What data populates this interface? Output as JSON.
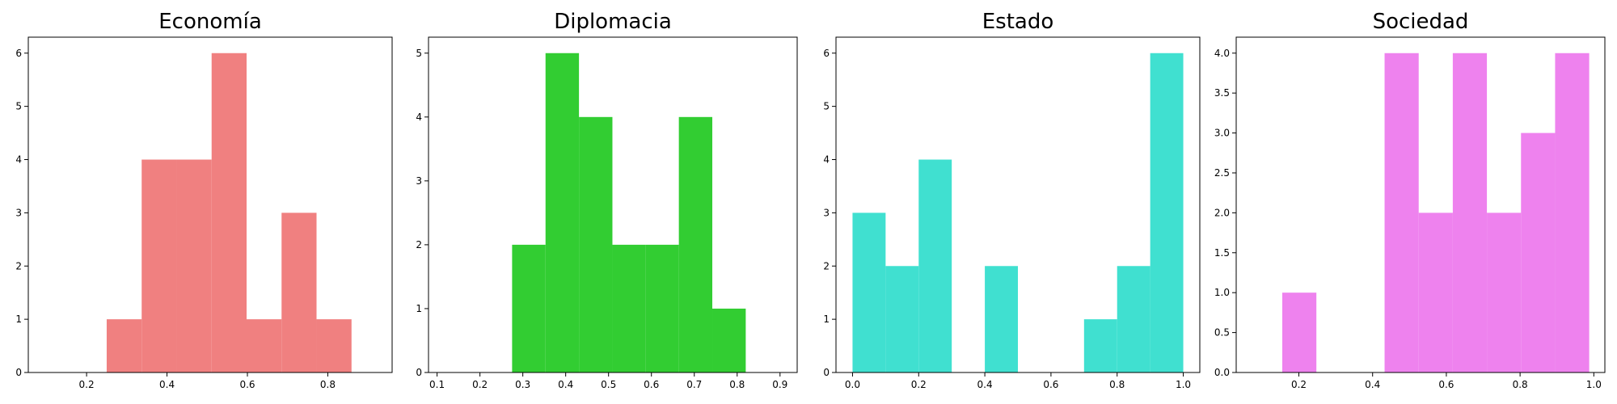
{
  "chart_data": [
    {
      "type": "bar",
      "title": "Economía",
      "color": "#F08080",
      "xlim": [
        0.055,
        0.96
      ],
      "ylim": [
        0,
        6.3
      ],
      "xticks": [
        0.2,
        0.4,
        0.6,
        0.8
      ],
      "xtick_labels": [
        "0.2",
        "0.4",
        "0.6",
        "0.8"
      ],
      "yticks": [
        0,
        1,
        2,
        3,
        4,
        5,
        6
      ],
      "ytick_labels": [
        "0",
        "1",
        "2",
        "3",
        "4",
        "5",
        "6"
      ],
      "bins": [
        0.25,
        0.337,
        0.424,
        0.511,
        0.598,
        0.685,
        0.772,
        0.859
      ],
      "counts": [
        1,
        4,
        4,
        6,
        1,
        3,
        1
      ]
    },
    {
      "type": "bar",
      "title": "Diplomacia",
      "color": "#32CD32",
      "xlim": [
        0.08,
        0.94
      ],
      "ylim": [
        0,
        5.25
      ],
      "xticks": [
        0.1,
        0.2,
        0.3,
        0.4,
        0.5,
        0.6,
        0.7,
        0.8,
        0.9
      ],
      "xtick_labels": [
        "0.1",
        "0.2",
        "0.3",
        "0.4",
        "0.5",
        "0.6",
        "0.7",
        "0.8",
        "0.9"
      ],
      "yticks": [
        0,
        1,
        2,
        3,
        4,
        5
      ],
      "ytick_labels": [
        "0",
        "1",
        "2",
        "3",
        "4",
        "5"
      ],
      "bins": [
        0.275,
        0.353,
        0.431,
        0.509,
        0.587,
        0.664,
        0.742,
        0.82
      ],
      "counts": [
        2,
        5,
        4,
        2,
        2,
        4,
        1
      ]
    },
    {
      "type": "bar",
      "title": "Estado",
      "color": "#40E0D0",
      "xlim": [
        -0.05,
        1.05
      ],
      "ylim": [
        0,
        6.3
      ],
      "xticks": [
        0,
        0.2,
        0.4,
        0.6,
        0.8,
        1.0
      ],
      "xtick_labels": [
        "0.0",
        "0.2",
        "0.4",
        "0.6",
        "0.8",
        "1.0"
      ],
      "yticks": [
        0,
        1,
        2,
        3,
        4,
        5,
        6
      ],
      "ytick_labels": [
        "0",
        "1",
        "2",
        "3",
        "4",
        "5",
        "6"
      ],
      "bins": [
        0,
        0.1,
        0.2,
        0.3,
        0.4,
        0.5,
        0.6,
        0.7,
        0.8,
        0.9,
        1.0
      ],
      "counts": [
        3,
        2,
        4,
        0,
        2,
        0,
        0,
        1,
        2,
        6
      ]
    },
    {
      "type": "bar",
      "title": "Sociedad",
      "color": "#EE82EE",
      "xlim": [
        0.03,
        1.03
      ],
      "ylim": [
        0,
        4.2
      ],
      "xticks": [
        0.2,
        0.4,
        0.6,
        0.8,
        1.0
      ],
      "xtick_labels": [
        "0.2",
        "0.4",
        "0.6",
        "0.8",
        "1.0"
      ],
      "yticks": [
        0,
        0.5,
        1,
        1.5,
        2,
        2.5,
        3,
        3.5,
        4
      ],
      "ytick_labels": [
        "0.0",
        "0.5",
        "1.0",
        "1.5",
        "2.0",
        "2.5",
        "3.0",
        "3.5",
        "4.0"
      ],
      "bins": [
        0.155,
        0.2475,
        0.34,
        0.4325,
        0.525,
        0.6175,
        0.71,
        0.8025,
        0.895,
        0.9875
      ],
      "counts": [
        1,
        0,
        0,
        4,
        2,
        4,
        2,
        3,
        4
      ]
    }
  ]
}
